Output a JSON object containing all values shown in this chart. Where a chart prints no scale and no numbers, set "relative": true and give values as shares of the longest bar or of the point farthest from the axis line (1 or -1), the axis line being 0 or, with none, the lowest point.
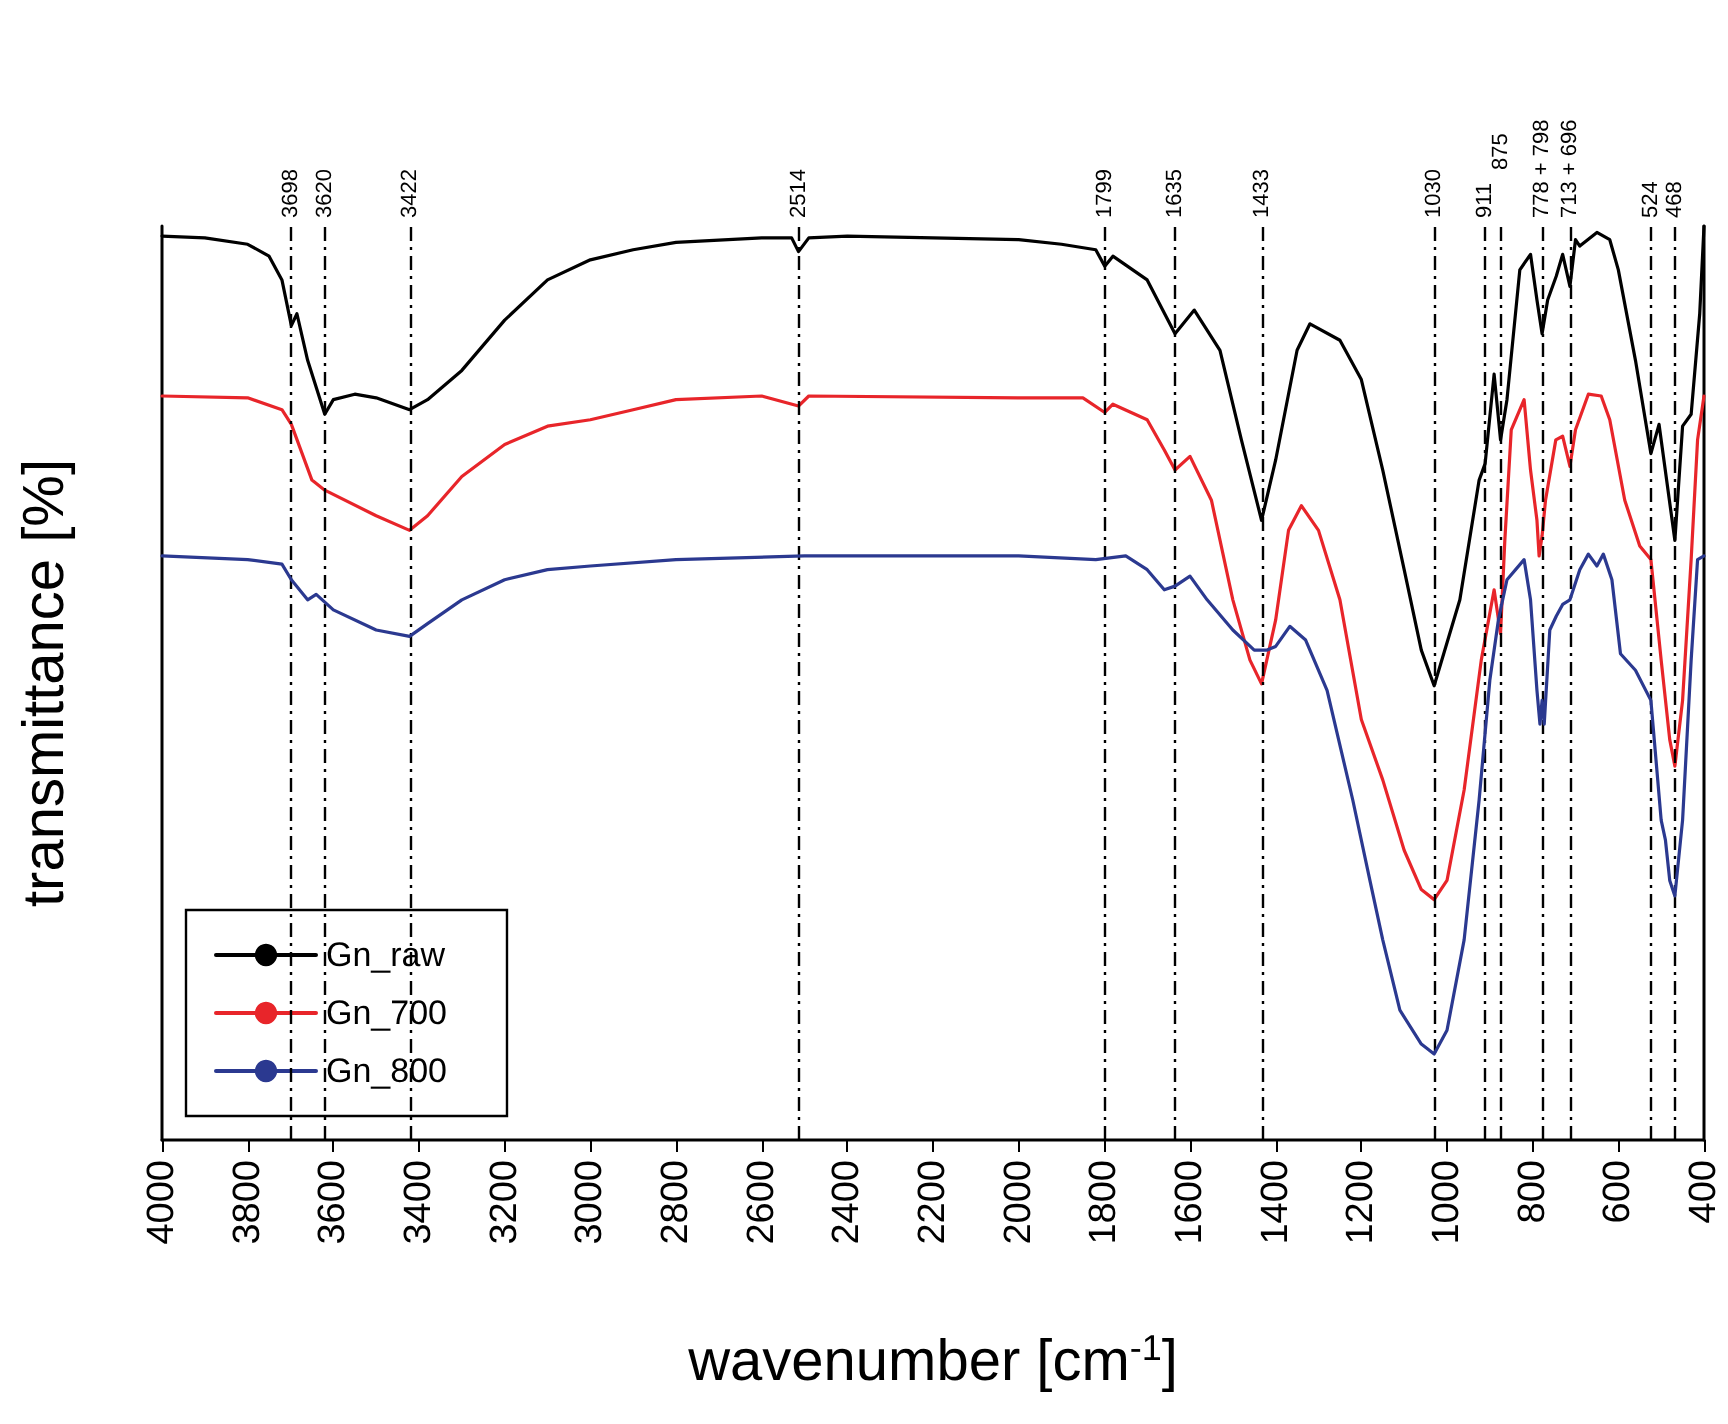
{
  "chart_data": {
    "type": "line",
    "relative": true,
    "xlabel": "wavenumber [cm$^{-1}$]",
    "ylabel": "transmittance [%]",
    "xlim": [
      4000,
      400
    ],
    "xticks": [
      4000,
      3800,
      3600,
      3400,
      3200,
      3000,
      2800,
      2600,
      2400,
      2200,
      2000,
      1800,
      1600,
      1400,
      1200,
      1000,
      800,
      600,
      400
    ],
    "tick_labels": "x",
    "grid": false,
    "legend": "bottom left",
    "marker": "none",
    "line_style": "solid",
    "series": [
      {
        "name": "Gn_raw",
        "color": "#000000",
        "x": [
          4000,
          3900,
          3800,
          3750,
          3720,
          3698,
          3685,
          3660,
          3620,
          3600,
          3550,
          3500,
          3422,
          3380,
          3300,
          3200,
          3100,
          3000,
          2900,
          2800,
          2600,
          2530,
          2514,
          2490,
          2400,
          2200,
          2000,
          1900,
          1820,
          1799,
          1780,
          1700,
          1635,
          1590,
          1530,
          1480,
          1433,
          1400,
          1350,
          1320,
          1250,
          1200,
          1150,
          1100,
          1060,
          1030,
          970,
          925,
          911,
          890,
          875,
          860,
          830,
          805,
          790,
          778,
          765,
          745,
          730,
          713,
          700,
          690,
          650,
          620,
          600,
          560,
          524,
          505,
          468,
          450,
          430,
          410,
          400
        ],
        "values": [
          0.989,
          0.987,
          0.98,
          0.967,
          0.941,
          0.891,
          0.904,
          0.853,
          0.794,
          0.81,
          0.816,
          0.812,
          0.799,
          0.81,
          0.842,
          0.897,
          0.941,
          0.963,
          0.974,
          0.982,
          0.987,
          0.987,
          0.972,
          0.987,
          0.989,
          0.987,
          0.985,
          0.98,
          0.974,
          0.956,
          0.967,
          0.941,
          0.882,
          0.908,
          0.864,
          0.766,
          0.678,
          0.744,
          0.864,
          0.893,
          0.875,
          0.832,
          0.733,
          0.624,
          0.536,
          0.497,
          0.591,
          0.722,
          0.74,
          0.838,
          0.766,
          0.81,
          0.952,
          0.969,
          0.919,
          0.882,
          0.919,
          0.945,
          0.969,
          0.934,
          0.985,
          0.978,
          0.993,
          0.985,
          0.952,
          0.853,
          0.751,
          0.783,
          0.656,
          0.781,
          0.794,
          0.904,
          1.0
        ]
      },
      {
        "name": "Gn_700",
        "color": "#e8252a",
        "x": [
          4000,
          3800,
          3720,
          3698,
          3650,
          3620,
          3500,
          3422,
          3380,
          3300,
          3200,
          3100,
          3000,
          2900,
          2800,
          2600,
          2514,
          2490,
          2000,
          1850,
          1799,
          1780,
          1700,
          1660,
          1635,
          1600,
          1550,
          1500,
          1460,
          1433,
          1400,
          1370,
          1340,
          1300,
          1250,
          1200,
          1150,
          1100,
          1060,
          1030,
          1000,
          960,
          920,
          890,
          875,
          865,
          850,
          820,
          805,
          790,
          785,
          778,
          770,
          746,
          730,
          713,
          700,
          670,
          640,
          620,
          585,
          550,
          524,
          500,
          480,
          468,
          450,
          430,
          415,
          400
        ],
        "values": [
          0.814,
          0.812,
          0.799,
          0.783,
          0.722,
          0.711,
          0.683,
          0.667,
          0.683,
          0.726,
          0.761,
          0.781,
          0.788,
          0.799,
          0.81,
          0.814,
          0.803,
          0.814,
          0.812,
          0.812,
          0.796,
          0.805,
          0.788,
          0.755,
          0.733,
          0.748,
          0.7,
          0.591,
          0.525,
          0.499,
          0.569,
          0.667,
          0.694,
          0.667,
          0.591,
          0.46,
          0.394,
          0.317,
          0.274,
          0.263,
          0.284,
          0.383,
          0.525,
          0.602,
          0.554,
          0.656,
          0.777,
          0.81,
          0.733,
          0.678,
          0.639,
          0.661,
          0.7,
          0.766,
          0.77,
          0.737,
          0.777,
          0.816,
          0.814,
          0.788,
          0.7,
          0.65,
          0.635,
          0.525,
          0.438,
          0.409,
          0.481,
          0.635,
          0.766,
          0.814
        ]
      },
      {
        "name": "Gn_800",
        "color": "#2b3990",
        "x": [
          4000,
          3800,
          3720,
          3698,
          3660,
          3640,
          3600,
          3500,
          3422,
          3380,
          3300,
          3200,
          3100,
          3000,
          2800,
          2500,
          2000,
          1820,
          1750,
          1700,
          1660,
          1635,
          1600,
          1560,
          1500,
          1450,
          1420,
          1400,
          1367,
          1330,
          1280,
          1220,
          1180,
          1150,
          1110,
          1060,
          1030,
          1000,
          960,
          925,
          900,
          880,
          860,
          820,
          805,
          790,
          783,
          778,
          773,
          760,
          745,
          730,
          713,
          690,
          670,
          650,
          635,
          615,
          595,
          560,
          524,
          500,
          490,
          480,
          468,
          450,
          430,
          415,
          400
        ],
        "values": [
          0.639,
          0.635,
          0.63,
          0.613,
          0.591,
          0.597,
          0.58,
          0.558,
          0.551,
          0.565,
          0.591,
          0.613,
          0.624,
          0.628,
          0.635,
          0.639,
          0.639,
          0.635,
          0.639,
          0.624,
          0.602,
          0.606,
          0.617,
          0.591,
          0.558,
          0.536,
          0.536,
          0.54,
          0.562,
          0.547,
          0.492,
          0.372,
          0.284,
          0.219,
          0.142,
          0.105,
          0.094,
          0.12,
          0.219,
          0.372,
          0.503,
          0.569,
          0.613,
          0.635,
          0.591,
          0.492,
          0.455,
          0.481,
          0.455,
          0.558,
          0.573,
          0.586,
          0.591,
          0.624,
          0.641,
          0.628,
          0.641,
          0.613,
          0.532,
          0.514,
          0.481,
          0.35,
          0.328,
          0.284,
          0.267,
          0.35,
          0.525,
          0.635,
          0.639
        ]
      }
    ],
    "ref_lines": [
      {
        "axis": "x",
        "value": 3698,
        "label": "3698",
        "color": "#000000",
        "line_style": "dashed"
      },
      {
        "axis": "x",
        "value": 3620,
        "label": "3620",
        "color": "#000000",
        "line_style": "dashed"
      },
      {
        "axis": "x",
        "value": 3422,
        "label": "3422",
        "color": "#000000",
        "line_style": "dashed"
      },
      {
        "axis": "x",
        "value": 2514,
        "label": "2514",
        "color": "#000000",
        "line_style": "dashed"
      },
      {
        "axis": "x",
        "value": 1799,
        "label": "1799",
        "color": "#000000",
        "line_style": "dashed"
      },
      {
        "axis": "x",
        "value": 1635,
        "label": "1635",
        "color": "#000000",
        "line_style": "dashed"
      },
      {
        "axis": "x",
        "value": 1433,
        "label": "1433",
        "color": "#000000",
        "line_style": "dashed"
      },
      {
        "axis": "x",
        "value": 1030,
        "label": "1030",
        "color": "#000000",
        "line_style": "dashed"
      },
      {
        "axis": "x",
        "value": 911,
        "label": "911",
        "color": "#000000",
        "line_style": "dashed"
      },
      {
        "axis": "x",
        "value": 875,
        "label": "875",
        "color": "#000000",
        "line_style": "dashed"
      },
      {
        "axis": "x",
        "value": 778,
        "label": "778 + 798",
        "color": "#000000",
        "line_style": "dashed"
      },
      {
        "axis": "x",
        "value": 713,
        "label": "713 + 696",
        "color": "#000000",
        "line_style": "dashed"
      },
      {
        "axis": "x",
        "value": 524,
        "label": "524",
        "color": "#000000",
        "line_style": "dashed"
      },
      {
        "axis": "x",
        "value": 468,
        "label": "468",
        "color": "#000000",
        "line_style": "dashed"
      }
    ]
  }
}
